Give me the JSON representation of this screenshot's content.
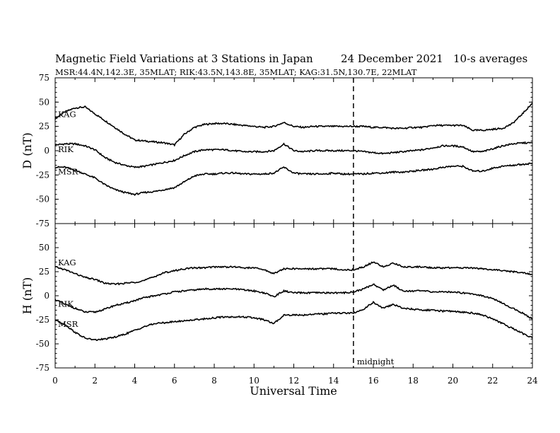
{
  "chart_data": {
    "type": "line",
    "title": "Magnetic Field Variations at 3 Stations in Japan",
    "date": "24 December 2021",
    "averaging": "10-s averages",
    "stations_info": "MSR:44.4N,142.3E, 35MLAT;  RIK:43.5N,143.8E, 35MLAT;  KAG:31.5N,130.7E, 22MLAT",
    "xlabel": "Universal Time",
    "xlim": [
      0,
      24
    ],
    "xticks": [
      "0",
      "2",
      "4",
      "6",
      "8",
      "10",
      "12",
      "14",
      "16",
      "18",
      "20",
      "22",
      "24"
    ],
    "midnight_ut": 15,
    "midnight_label": "midnight",
    "panels": [
      {
        "ylabel": "D (nT)",
        "ylim": [
          -75,
          75
        ],
        "yticks": [
          "75",
          "50",
          "25",
          "0",
          "-25",
          "-50",
          "-75"
        ],
        "series": [
          {
            "name": "KAG",
            "x": [
              0,
              0.5,
              1,
              1.5,
              2,
              2.5,
              3,
              3.5,
              4,
              4.5,
              5,
              5.5,
              6,
              6.5,
              7,
              7.5,
              8,
              8.5,
              9,
              9.5,
              10,
              10.5,
              11,
              11.5,
              12,
              12.5,
              13,
              13.5,
              14,
              14.5,
              15,
              15.5,
              16,
              16.5,
              17,
              17.5,
              18,
              18.5,
              19,
              19.5,
              20,
              20.5,
              21,
              21.5,
              22,
              22.5,
              23,
              23.5,
              24
            ],
            "y": [
              33,
              40,
              44,
              45,
              38,
              31,
              24,
              17,
              11,
              10,
              9,
              8,
              6,
              17,
              24,
              27,
              28,
              28,
              27,
              26,
              25,
              24,
              25,
              29,
              25,
              24,
              25,
              25,
              25,
              25,
              25,
              25,
              24,
              24,
              23,
              23,
              24,
              24,
              26,
              26,
              26,
              26,
              21,
              21,
              22,
              23,
              28,
              38,
              49
            ]
          },
          {
            "name": "RIK",
            "x": [
              0,
              0.5,
              1,
              1.5,
              2,
              2.5,
              3,
              3.5,
              4,
              4.5,
              5,
              5.5,
              6,
              6.5,
              7,
              7.5,
              8,
              8.5,
              9,
              9.5,
              10,
              10.5,
              11,
              11.5,
              12,
              12.5,
              13,
              13.5,
              14,
              14.5,
              15,
              15.5,
              16,
              16.5,
              17,
              17.5,
              18,
              18.5,
              19,
              19.5,
              20,
              20.5,
              21,
              21.5,
              22,
              22.5,
              23,
              23.5,
              24
            ],
            "y": [
              6,
              7,
              7,
              5,
              1,
              -7,
              -12,
              -15,
              -17,
              -16,
              -14,
              -12,
              -10,
              -5,
              -1,
              1,
              1,
              1,
              0,
              -1,
              -1,
              -1,
              0,
              7,
              0,
              -1,
              0,
              0,
              0,
              0,
              0,
              -1,
              -2,
              -3,
              -2,
              -1,
              0,
              1,
              3,
              5,
              5,
              4,
              -1,
              -1,
              2,
              5,
              7,
              8,
              8
            ]
          },
          {
            "name": "MSR",
            "x": [
              0,
              0.5,
              1,
              1.5,
              2,
              2.5,
              3,
              3.5,
              4,
              4.5,
              5,
              5.5,
              6,
              6.5,
              7,
              7.5,
              8,
              8.5,
              9,
              9.5,
              10,
              10.5,
              11,
              11.5,
              12,
              12.5,
              13,
              13.5,
              14,
              14.5,
              15,
              15.5,
              16,
              16.5,
              17,
              17.5,
              18,
              18.5,
              19,
              19.5,
              20,
              20.5,
              21,
              21.5,
              22,
              22.5,
              23,
              23.5,
              24
            ],
            "y": [
              -17,
              -17,
              -20,
              -24,
              -28,
              -35,
              -40,
              -43,
              -45,
              -43,
              -42,
              -40,
              -38,
              -32,
              -26,
              -24,
              -24,
              -23,
              -23,
              -24,
              -24,
              -24,
              -23,
              -17,
              -23,
              -24,
              -24,
              -24,
              -23,
              -24,
              -24,
              -24,
              -23,
              -23,
              -22,
              -22,
              -21,
              -20,
              -19,
              -17,
              -16,
              -16,
              -21,
              -21,
              -18,
              -16,
              -15,
              -14,
              -13
            ]
          }
        ]
      },
      {
        "ylabel": "H (nT)",
        "ylim": [
          -75,
          75
        ],
        "yticks": [
          "75",
          "50",
          "25",
          "0",
          "-25",
          "-50",
          "-75"
        ],
        "series": [
          {
            "name": "KAG",
            "x": [
              0,
              0.5,
              1,
              1.5,
              2,
              2.5,
              3,
              3.5,
              4,
              4.5,
              5,
              5.5,
              6,
              6.5,
              7,
              7.5,
              8,
              8.5,
              9,
              9.5,
              10,
              10.5,
              11,
              11.5,
              12,
              12.5,
              13,
              13.5,
              14,
              14.5,
              15,
              15.5,
              16,
              16.5,
              17,
              17.5,
              18,
              18.5,
              19,
              19.5,
              20,
              20.5,
              21,
              21.5,
              22,
              22.5,
              23,
              23.5,
              24
            ],
            "y": [
              30,
              27,
              23,
              19,
              17,
              13,
              12,
              13,
              14,
              16,
              20,
              24,
              26,
              28,
              29,
              29,
              30,
              30,
              30,
              29,
              29,
              27,
              23,
              28,
              28,
              28,
              28,
              28,
              28,
              27,
              27,
              30,
              35,
              30,
              34,
              30,
              30,
              30,
              29,
              29,
              29,
              29,
              29,
              28,
              27,
              26,
              25,
              24,
              22
            ]
          },
          {
            "name": "RIK",
            "x": [
              0,
              0.5,
              1,
              1.5,
              2,
              2.5,
              3,
              3.5,
              4,
              4.5,
              5,
              5.5,
              6,
              6.5,
              7,
              7.5,
              8,
              8.5,
              9,
              9.5,
              10,
              10.5,
              11,
              11.5,
              12,
              12.5,
              13,
              13.5,
              14,
              14.5,
              15,
              15.5,
              16,
              16.5,
              17,
              17.5,
              18,
              18.5,
              19,
              19.5,
              20,
              20.5,
              21,
              21.5,
              22,
              22.5,
              23,
              23.5,
              24
            ],
            "y": [
              -4,
              -9,
              -13,
              -17,
              -17,
              -14,
              -10,
              -8,
              -5,
              -2,
              0,
              2,
              4,
              5,
              6,
              7,
              7,
              7,
              7,
              6,
              5,
              3,
              -1,
              5,
              3,
              3,
              3,
              3,
              3,
              3,
              4,
              7,
              12,
              6,
              11,
              5,
              5,
              5,
              4,
              4,
              4,
              3,
              2,
              0,
              -3,
              -8,
              -13,
              -18,
              -24
            ]
          },
          {
            "name": "MSR",
            "x": [
              0,
              0.5,
              1,
              1.5,
              2,
              2.5,
              3,
              3.5,
              4,
              4.5,
              5,
              5.5,
              6,
              6.5,
              7,
              7.5,
              8,
              8.5,
              9,
              9.5,
              10,
              10.5,
              11,
              11.5,
              12,
              12.5,
              13,
              13.5,
              14,
              14.5,
              15,
              15.5,
              16,
              16.5,
              17,
              17.5,
              18,
              18.5,
              19,
              19.5,
              20,
              20.5,
              21,
              21.5,
              22,
              22.5,
              23,
              23.5,
              24
            ],
            "y": [
              -25,
              -30,
              -38,
              -44,
              -46,
              -45,
              -43,
              -40,
              -36,
              -32,
              -29,
              -28,
              -27,
              -26,
              -25,
              -24,
              -23,
              -22,
              -22,
              -22,
              -23,
              -25,
              -29,
              -20,
              -20,
              -20,
              -19,
              -19,
              -18,
              -18,
              -18,
              -14,
              -7,
              -13,
              -9,
              -13,
              -14,
              -15,
              -15,
              -16,
              -16,
              -17,
              -18,
              -20,
              -24,
              -29,
              -34,
              -39,
              -44
            ]
          }
        ]
      }
    ]
  }
}
